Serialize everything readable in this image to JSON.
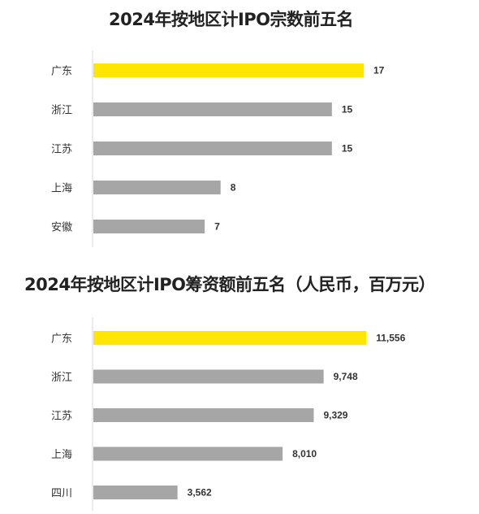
{
  "chart_data": [
    {
      "type": "bar",
      "orientation": "horizontal",
      "title": "2024年按地区计IPO宗数前五名",
      "categories": [
        "广东",
        "浙江",
        "江苏",
        "上海",
        "安徽"
      ],
      "values": [
        17,
        15,
        15,
        8,
        7
      ],
      "value_labels": [
        "17",
        "15",
        "15",
        "8",
        "7"
      ],
      "xlim": [
        0,
        17
      ],
      "grid": false,
      "bar_colors": [
        "#FFE600",
        "#A6A6A6",
        "#A6A6A6",
        "#A6A6A6",
        "#A6A6A6"
      ]
    },
    {
      "type": "bar",
      "orientation": "horizontal",
      "title": "2024年按地区计IPO筹资额前五名（人民币，百万元）",
      "categories": [
        "广东",
        "浙江",
        "江苏",
        "上海",
        "四川"
      ],
      "values": [
        11556,
        9748,
        9329,
        8010,
        3562
      ],
      "value_labels": [
        "11,556",
        "9,748",
        "9,329",
        "8,010",
        "3,562"
      ],
      "xlim": [
        0,
        15500
      ],
      "grid": false,
      "bar_colors": [
        "#FFE600",
        "#A6A6A6",
        "#A6A6A6",
        "#A6A6A6",
        "#A6A6A6"
      ]
    }
  ]
}
